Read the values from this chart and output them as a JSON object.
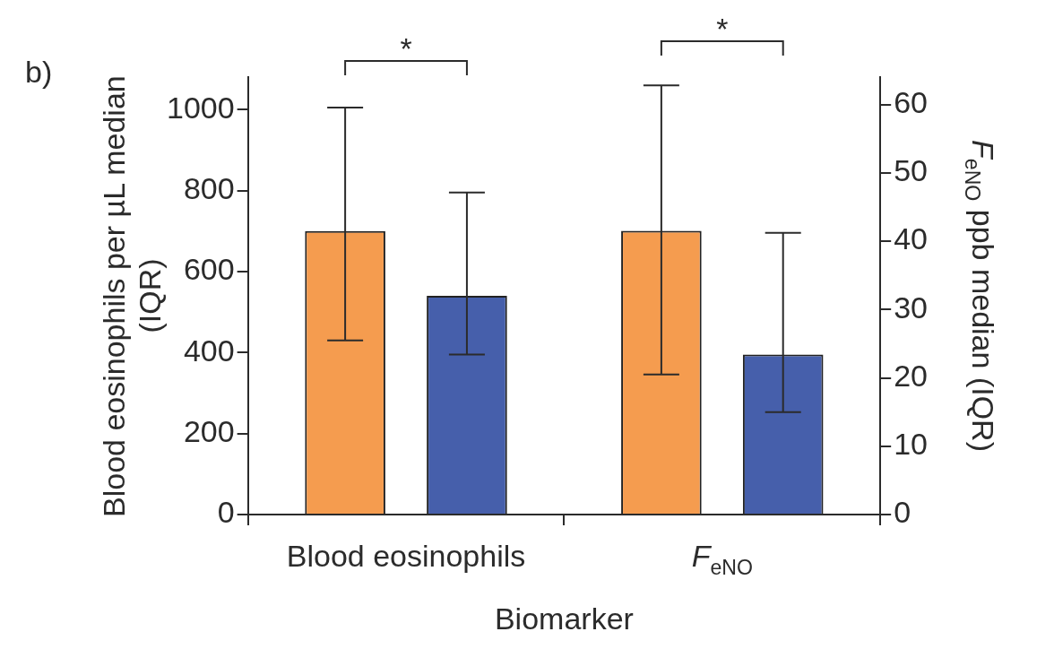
{
  "chart_data": {
    "type": "bar",
    "xlabel": "Biomarker",
    "ylabel": "Blood eosinophils per µL median (IQR)",
    "y2label": "F$_{eNO}$ ppb median (IQR)",
    "categories": [
      "Blood eosinophils",
      "F$_{eNO}$"
    ],
    "series": [
      {
        "color": "#f59c4f",
        "values": [
          700,
          null
        ],
        "errors": [
          [
            430,
            1005
          ],
          null
        ]
      },
      {
        "color": "#465fab",
        "values": [
          540,
          null
        ],
        "errors": [
          [
            395,
            795
          ],
          null
        ]
      },
      {
        "color": "#f59c4f",
        "axis": "y2",
        "values": [
          null,
          41.5
        ],
        "errors": [
          null,
          [
            20.5,
            62.8
          ]
        ]
      },
      {
        "color": "#465fab",
        "axis": "y2",
        "values": [
          null,
          23.4
        ],
        "errors": [
          null,
          [
            15,
            41.2
          ]
        ]
      }
    ],
    "ylim": [
      0,
      1080
    ],
    "yticks": [
      0,
      200,
      400,
      600,
      800,
      1000
    ],
    "y2lim": [
      0,
      64
    ],
    "y2ticks": [
      0,
      10,
      20,
      30,
      40,
      50,
      60
    ],
    "annotations": [
      "b)",
      "*",
      "*"
    ],
    "grid": false,
    "legend": false
  }
}
